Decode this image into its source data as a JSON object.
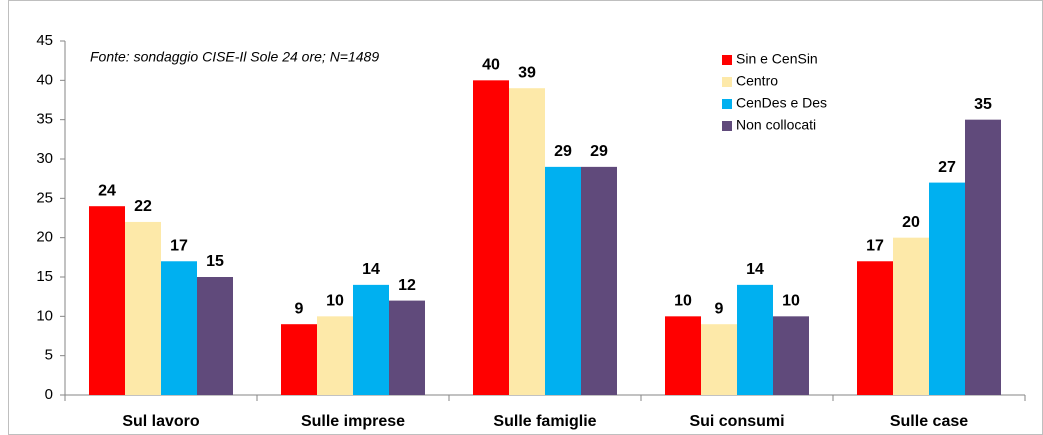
{
  "chart_data": {
    "type": "bar",
    "annotation": "Fonte: sondaggio CISE-Il Sole 24 ore; N=1489",
    "categories": [
      "Sul lavoro",
      "Sulle imprese",
      "Sulle famiglie",
      "Sui consumi",
      "Sulle case"
    ],
    "series": [
      {
        "name": "Sin e CenSin",
        "color": "#ff0000",
        "values": [
          24,
          9,
          40,
          10,
          17
        ]
      },
      {
        "name": "Centro",
        "color": "#fde9a9",
        "values": [
          22,
          10,
          39,
          9,
          20
        ]
      },
      {
        "name": "CenDes e Des",
        "color": "#00b0f0",
        "values": [
          17,
          14,
          29,
          14,
          27
        ]
      },
      {
        "name": "Non collocati",
        "color": "#604a7b",
        "values": [
          15,
          12,
          29,
          10,
          35
        ]
      }
    ],
    "ylim": [
      0,
      45
    ],
    "yticks": [
      0,
      5,
      10,
      15,
      20,
      25,
      30,
      35,
      40,
      45
    ],
    "grid": false,
    "legend": "upper right"
  }
}
